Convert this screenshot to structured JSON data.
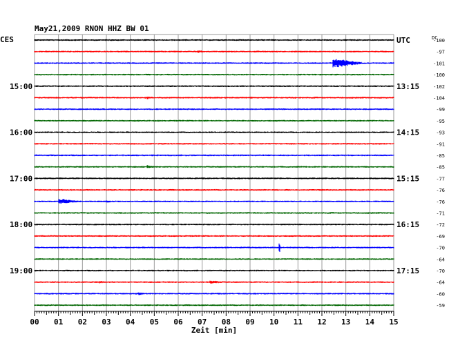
{
  "header": {
    "title": "May21,2009   RNON HHZ BW 01",
    "left_label": "CES",
    "right_label": "UTC",
    "dc_label": "DC"
  },
  "chart_data": {
    "type": "line",
    "title": "May21,2009   RNON HHZ BW 01",
    "xlabel": "Zeit [min]",
    "ylabel": "",
    "xlim": [
      0,
      15
    ],
    "x_ticks": [
      "00",
      "01",
      "02",
      "03",
      "04",
      "05",
      "06",
      "07",
      "08",
      "09",
      "10",
      "11",
      "12",
      "13",
      "14",
      "15"
    ],
    "grid": true,
    "trace_colors": [
      "#000000",
      "#ff0000",
      "#0000ff",
      "#006600"
    ],
    "left_time_labels": [
      {
        "row": 4,
        "label": "15:00"
      },
      {
        "row": 8,
        "label": "16:00"
      },
      {
        "row": 12,
        "label": "17:00"
      },
      {
        "row": 16,
        "label": "18:00"
      },
      {
        "row": 20,
        "label": "19:00"
      }
    ],
    "right_time_labels": [
      {
        "row": 0,
        "label": "UTC"
      },
      {
        "row": 4,
        "label": "13:15"
      },
      {
        "row": 8,
        "label": "14:15"
      },
      {
        "row": 12,
        "label": "15:15"
      },
      {
        "row": 16,
        "label": "16:15"
      },
      {
        "row": 20,
        "label": "17:15"
      }
    ],
    "dc_offsets": [
      "-100",
      "-97",
      "-101",
      "-100",
      "-102",
      "-104",
      "-99",
      "-95",
      "-93",
      "-91",
      "-85",
      "-85",
      "-77",
      "-76",
      "-76",
      "-71",
      "-72",
      "-69",
      "-70",
      "-64",
      "-70",
      "-64",
      "-60",
      "-59"
    ],
    "events": [
      {
        "row": 1,
        "x": 6.8,
        "width": 0.3,
        "amp": 2.5
      },
      {
        "row": 2,
        "x": 12.45,
        "width": 1.2,
        "amp": 7
      },
      {
        "row": 5,
        "x": 4.7,
        "width": 0.3,
        "amp": 2.5
      },
      {
        "row": 8,
        "x": 12.7,
        "width": 0.5,
        "amp": 1.5
      },
      {
        "row": 11,
        "x": 4.7,
        "width": 0.4,
        "amp": 2.5
      },
      {
        "row": 11,
        "x": 9.3,
        "width": 0.3,
        "amp": 1.5
      },
      {
        "row": 14,
        "x": 1.0,
        "width": 0.9,
        "amp": 4.5
      },
      {
        "row": 14,
        "x": 3.0,
        "width": 0.4,
        "amp": 2
      },
      {
        "row": 18,
        "x": 10.2,
        "width": 0.05,
        "amp": 9
      },
      {
        "row": 21,
        "x": 2.7,
        "width": 0.5,
        "amp": 2
      },
      {
        "row": 21,
        "x": 7.3,
        "width": 0.9,
        "amp": 2.5
      },
      {
        "row": 22,
        "x": 4.3,
        "width": 0.4,
        "amp": 2.5
      }
    ]
  }
}
